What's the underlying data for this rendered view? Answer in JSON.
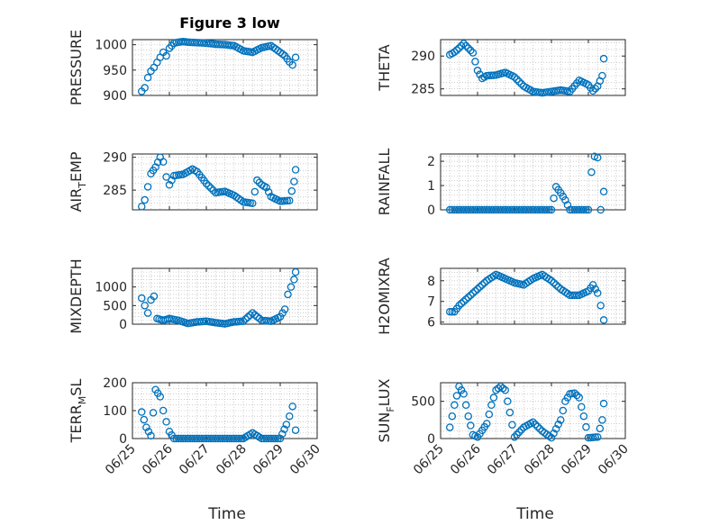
{
  "figure": {
    "title": "Figure 3 low",
    "marker_color": "#0072BD",
    "xlabel": "Time"
  },
  "chart_data": [
    {
      "type": "scatter",
      "title": "Figure 3 low",
      "ylabel": "PRESSURE",
      "xlim": [
        "06/25",
        "06/30"
      ],
      "ylim": [
        900,
        1010
      ],
      "yticks": [
        900,
        950,
        1000
      ],
      "xticks": [
        "06/25",
        "06/26",
        "06/27",
        "06/28",
        "06/29",
        "06/30"
      ],
      "show_xtick_labels": false,
      "grid": true,
      "x": [
        "06/25 06:00",
        "06/25 08:00",
        "06/25 10:00",
        "06/25 12:00",
        "06/25 14:00",
        "06/25 16:00",
        "06/25 18:00",
        "06/25 20:00",
        "06/25 22:00",
        "06/26 00:00",
        "06/26 03:00",
        "06/26 06:00",
        "06/26 09:00",
        "06/26 12:00",
        "06/26 18:00",
        "06/27 00:00",
        "06/27 06:00",
        "06/27 12:00",
        "06/27 18:00",
        "06/28 00:00",
        "06/28 06:00",
        "06/28 12:00",
        "06/28 18:00",
        "06/29 00:00",
        "06/29 03:00",
        "06/29 06:00",
        "06/29 08:00",
        "06/29 10:00"
      ],
      "y": [
        908,
        915,
        935,
        948,
        955,
        965,
        975,
        985,
        978,
        993,
        1003,
        1005,
        1006,
        1005,
        1004,
        1003,
        1001,
        1000,
        998,
        988,
        985,
        994,
        998,
        985,
        978,
        966,
        960,
        975
      ]
    },
    {
      "type": "scatter",
      "ylabel": "THETA",
      "xlim": [
        "06/25",
        "06/30"
      ],
      "ylim": [
        284,
        292.5
      ],
      "yticks": [
        285,
        290
      ],
      "xticks": [
        "06/25",
        "06/26",
        "06/27",
        "06/28",
        "06/29",
        "06/30"
      ],
      "show_xtick_labels": false,
      "grid": true,
      "x": [
        "06/25 06:00",
        "06/25 09:00",
        "06/25 12:00",
        "06/25 15:00",
        "06/25 18:00",
        "06/25 21:00",
        "06/26 00:00",
        "06/26 03:00",
        "06/26 06:00",
        "06/26 12:00",
        "06/26 18:00",
        "06/27 00:00",
        "06/27 06:00",
        "06/27 12:00",
        "06/27 18:00",
        "06/28 00:00",
        "06/28 06:00",
        "06/28 12:00",
        "06/28 18:00",
        "06/29 00:00",
        "06/29 03:00",
        "06/29 06:00",
        "06/29 09:00",
        "06/29 10:00"
      ],
      "y": [
        290.2,
        290.6,
        291.2,
        291.9,
        291.2,
        290.5,
        287.8,
        286.6,
        287.0,
        287.1,
        287.5,
        286.8,
        285.4,
        284.6,
        284.4,
        284.6,
        284.8,
        284.6,
        286.3,
        285.6,
        284.7,
        285.4,
        287.0,
        289.6
      ]
    },
    {
      "type": "scatter",
      "ylabel": "AIR_TEMP",
      "xlim": [
        "06/25",
        "06/30"
      ],
      "ylim": [
        282,
        290.5
      ],
      "yticks": [
        285,
        290
      ],
      "xticks": [
        "06/25",
        "06/26",
        "06/27",
        "06/28",
        "06/29",
        "06/30"
      ],
      "show_xtick_labels": false,
      "grid": true,
      "x": [
        "06/25 06:00",
        "06/25 08:00",
        "06/25 10:00",
        "06/25 12:00",
        "06/25 15:00",
        "06/25 18:00",
        "06/25 20:00",
        "06/25 22:00",
        "06/26 00:00",
        "06/26 03:00",
        "06/26 09:00",
        "06/26 15:00",
        "06/26 18:00",
        "06/27 00:00",
        "06/27 06:00",
        "06/27 12:00",
        "06/27 18:00",
        "06/28 00:00",
        "06/28 06:00",
        "06/28 09:00",
        "06/28 12:00",
        "06/28 15:00",
        "06/28 18:00",
        "06/29 00:00",
        "06/29 06:00",
        "06/29 09:00",
        "06/29 10:00"
      ],
      "y": [
        282.5,
        283.5,
        285.5,
        287.5,
        288.5,
        290.0,
        289.3,
        287.0,
        285.8,
        287.2,
        287.4,
        288.2,
        287.8,
        286.0,
        284.6,
        284.8,
        284.2,
        283.2,
        283.0,
        286.5,
        285.8,
        285.4,
        284.0,
        283.3,
        283.4,
        286.3,
        288.1
      ]
    },
    {
      "type": "scatter",
      "ylabel": "RAINFALL",
      "xlim": [
        "06/25",
        "06/30"
      ],
      "ylim": [
        0,
        2.3
      ],
      "yticks": [
        0,
        1,
        2
      ],
      "xticks": [
        "06/25",
        "06/26",
        "06/27",
        "06/28",
        "06/29",
        "06/30"
      ],
      "show_xtick_labels": false,
      "grid": true,
      "x": [
        "06/25 06:00",
        "06/25 12:00",
        "06/25 18:00",
        "06/26 00:00",
        "06/26 06:00",
        "06/26 12:00",
        "06/26 18:00",
        "06/27 00:00",
        "06/27 06:00",
        "06/27 12:00",
        "06/27 18:00",
        "06/28 00:00",
        "06/28 03:00",
        "06/28 06:00",
        "06/28 09:00",
        "06/28 12:00",
        "06/28 18:00",
        "06/29 00:00",
        "06/29 02:00",
        "06/29 04:00",
        "06/29 06:00",
        "06/29 08:00",
        "06/29 10:00"
      ],
      "y": [
        0,
        0,
        0,
        0,
        0,
        0,
        0,
        0,
        0,
        0,
        0,
        0,
        0.95,
        0.7,
        0.4,
        0,
        0,
        0,
        1.55,
        2.2,
        2.15,
        0,
        0.75
      ]
    },
    {
      "type": "scatter",
      "ylabel": "MIXDEPTH",
      "xlim": [
        "06/25",
        "06/30"
      ],
      "ylim": [
        0,
        1500
      ],
      "yticks": [
        0,
        500,
        1000
      ],
      "xticks": [
        "06/25",
        "06/26",
        "06/27",
        "06/28",
        "06/29",
        "06/30"
      ],
      "show_xtick_labels": false,
      "grid": true,
      "x": [
        "06/25 06:00",
        "06/25 08:00",
        "06/25 10:00",
        "06/25 12:00",
        "06/25 14:00",
        "06/25 16:00",
        "06/25 20:00",
        "06/26 00:00",
        "06/26 06:00",
        "06/26 12:00",
        "06/26 18:00",
        "06/27 00:00",
        "06/27 06:00",
        "06/27 12:00",
        "06/27 18:00",
        "06/28 00:00",
        "06/28 06:00",
        "06/28 12:00",
        "06/28 18:00",
        "06/29 00:00",
        "06/29 03:00",
        "06/29 05:00",
        "06/29 07:00",
        "06/29 09:00",
        "06/29 10:00"
      ],
      "y": [
        700,
        500,
        300,
        650,
        750,
        150,
        100,
        150,
        100,
        20,
        60,
        80,
        40,
        10,
        60,
        80,
        300,
        100,
        80,
        200,
        400,
        800,
        1000,
        1200,
        1400
      ]
    },
    {
      "type": "scatter",
      "ylabel": "H2OMIXRA",
      "xlim": [
        "06/25",
        "06/30"
      ],
      "ylim": [
        5.9,
        8.6
      ],
      "yticks": [
        6,
        7,
        8
      ],
      "xticks": [
        "06/25",
        "06/26",
        "06/27",
        "06/28",
        "06/29",
        "06/30"
      ],
      "show_xtick_labels": false,
      "grid": true,
      "x": [
        "06/25 06:00",
        "06/25 09:00",
        "06/25 12:00",
        "06/25 18:00",
        "06/26 00:00",
        "06/26 06:00",
        "06/26 12:00",
        "06/26 18:00",
        "06/27 00:00",
        "06/27 06:00",
        "06/27 12:00",
        "06/27 18:00",
        "06/28 00:00",
        "06/28 06:00",
        "06/28 12:00",
        "06/28 18:00",
        "06/29 00:00",
        "06/29 03:00",
        "06/29 06:00",
        "06/29 08:00",
        "06/29 10:00"
      ],
      "y": [
        6.5,
        6.5,
        6.8,
        7.2,
        7.6,
        8.0,
        8.3,
        8.1,
        7.9,
        7.8,
        8.1,
        8.3,
        8.0,
        7.6,
        7.3,
        7.3,
        7.5,
        7.8,
        7.4,
        6.8,
        6.1
      ]
    },
    {
      "type": "scatter",
      "ylabel": "TERR_MSL",
      "xlim": [
        "06/25",
        "06/30"
      ],
      "ylim": [
        0,
        200
      ],
      "yticks": [
        0,
        100,
        200
      ],
      "xticks": [
        "06/25",
        "06/26",
        "06/27",
        "06/28",
        "06/29",
        "06/30"
      ],
      "show_xtick_labels": true,
      "grid": true,
      "x": [
        "06/25 06:00",
        "06/25 09:00",
        "06/25 12:00",
        "06/25 15:00",
        "06/25 18:00",
        "06/25 20:00",
        "06/25 22:00",
        "06/26 00:00",
        "06/26 03:00",
        "06/26 12:00",
        "06/27 00:00",
        "06/27 12:00",
        "06/28 00:00",
        "06/28 06:00",
        "06/28 12:00",
        "06/29 00:00",
        "06/29 04:00",
        "06/29 06:00",
        "06/29 08:00",
        "06/29 10:00"
      ],
      "y": [
        95,
        40,
        10,
        175,
        150,
        100,
        60,
        25,
        0,
        0,
        0,
        0,
        0,
        20,
        0,
        0,
        50,
        80,
        115,
        30
      ]
    },
    {
      "type": "scatter",
      "ylabel": "SUN_FLUX",
      "xlim": [
        "06/25",
        "06/30"
      ],
      "ylim": [
        0,
        750
      ],
      "yticks": [
        0,
        500
      ],
      "xticks": [
        "06/25",
        "06/26",
        "06/27",
        "06/28",
        "06/29",
        "06/30"
      ],
      "show_xtick_labels": true,
      "grid": true,
      "x": [
        "06/25 06:00",
        "06/25 09:00",
        "06/25 12:00",
        "06/25 15:00",
        "06/25 18:00",
        "06/25 21:00",
        "06/26 00:00",
        "06/26 06:00",
        "06/26 09:00",
        "06/26 12:00",
        "06/26 15:00",
        "06/26 18:00",
        "06/26 21:00",
        "06/27 00:00",
        "06/27 06:00",
        "06/27 12:00",
        "06/27 18:00",
        "06/28 00:00",
        "06/28 06:00",
        "06/28 09:00",
        "06/28 12:00",
        "06/28 15:00",
        "06/28 18:00",
        "06/28 21:00",
        "06/29 00:00",
        "06/29 06:00",
        "06/29 09:00",
        "06/29 10:00"
      ],
      "y": [
        150,
        450,
        700,
        600,
        300,
        50,
        20,
        200,
        450,
        650,
        700,
        650,
        350,
        20,
        150,
        220,
        100,
        10,
        250,
        500,
        600,
        610,
        550,
        300,
        10,
        20,
        250,
        470
      ]
    }
  ]
}
